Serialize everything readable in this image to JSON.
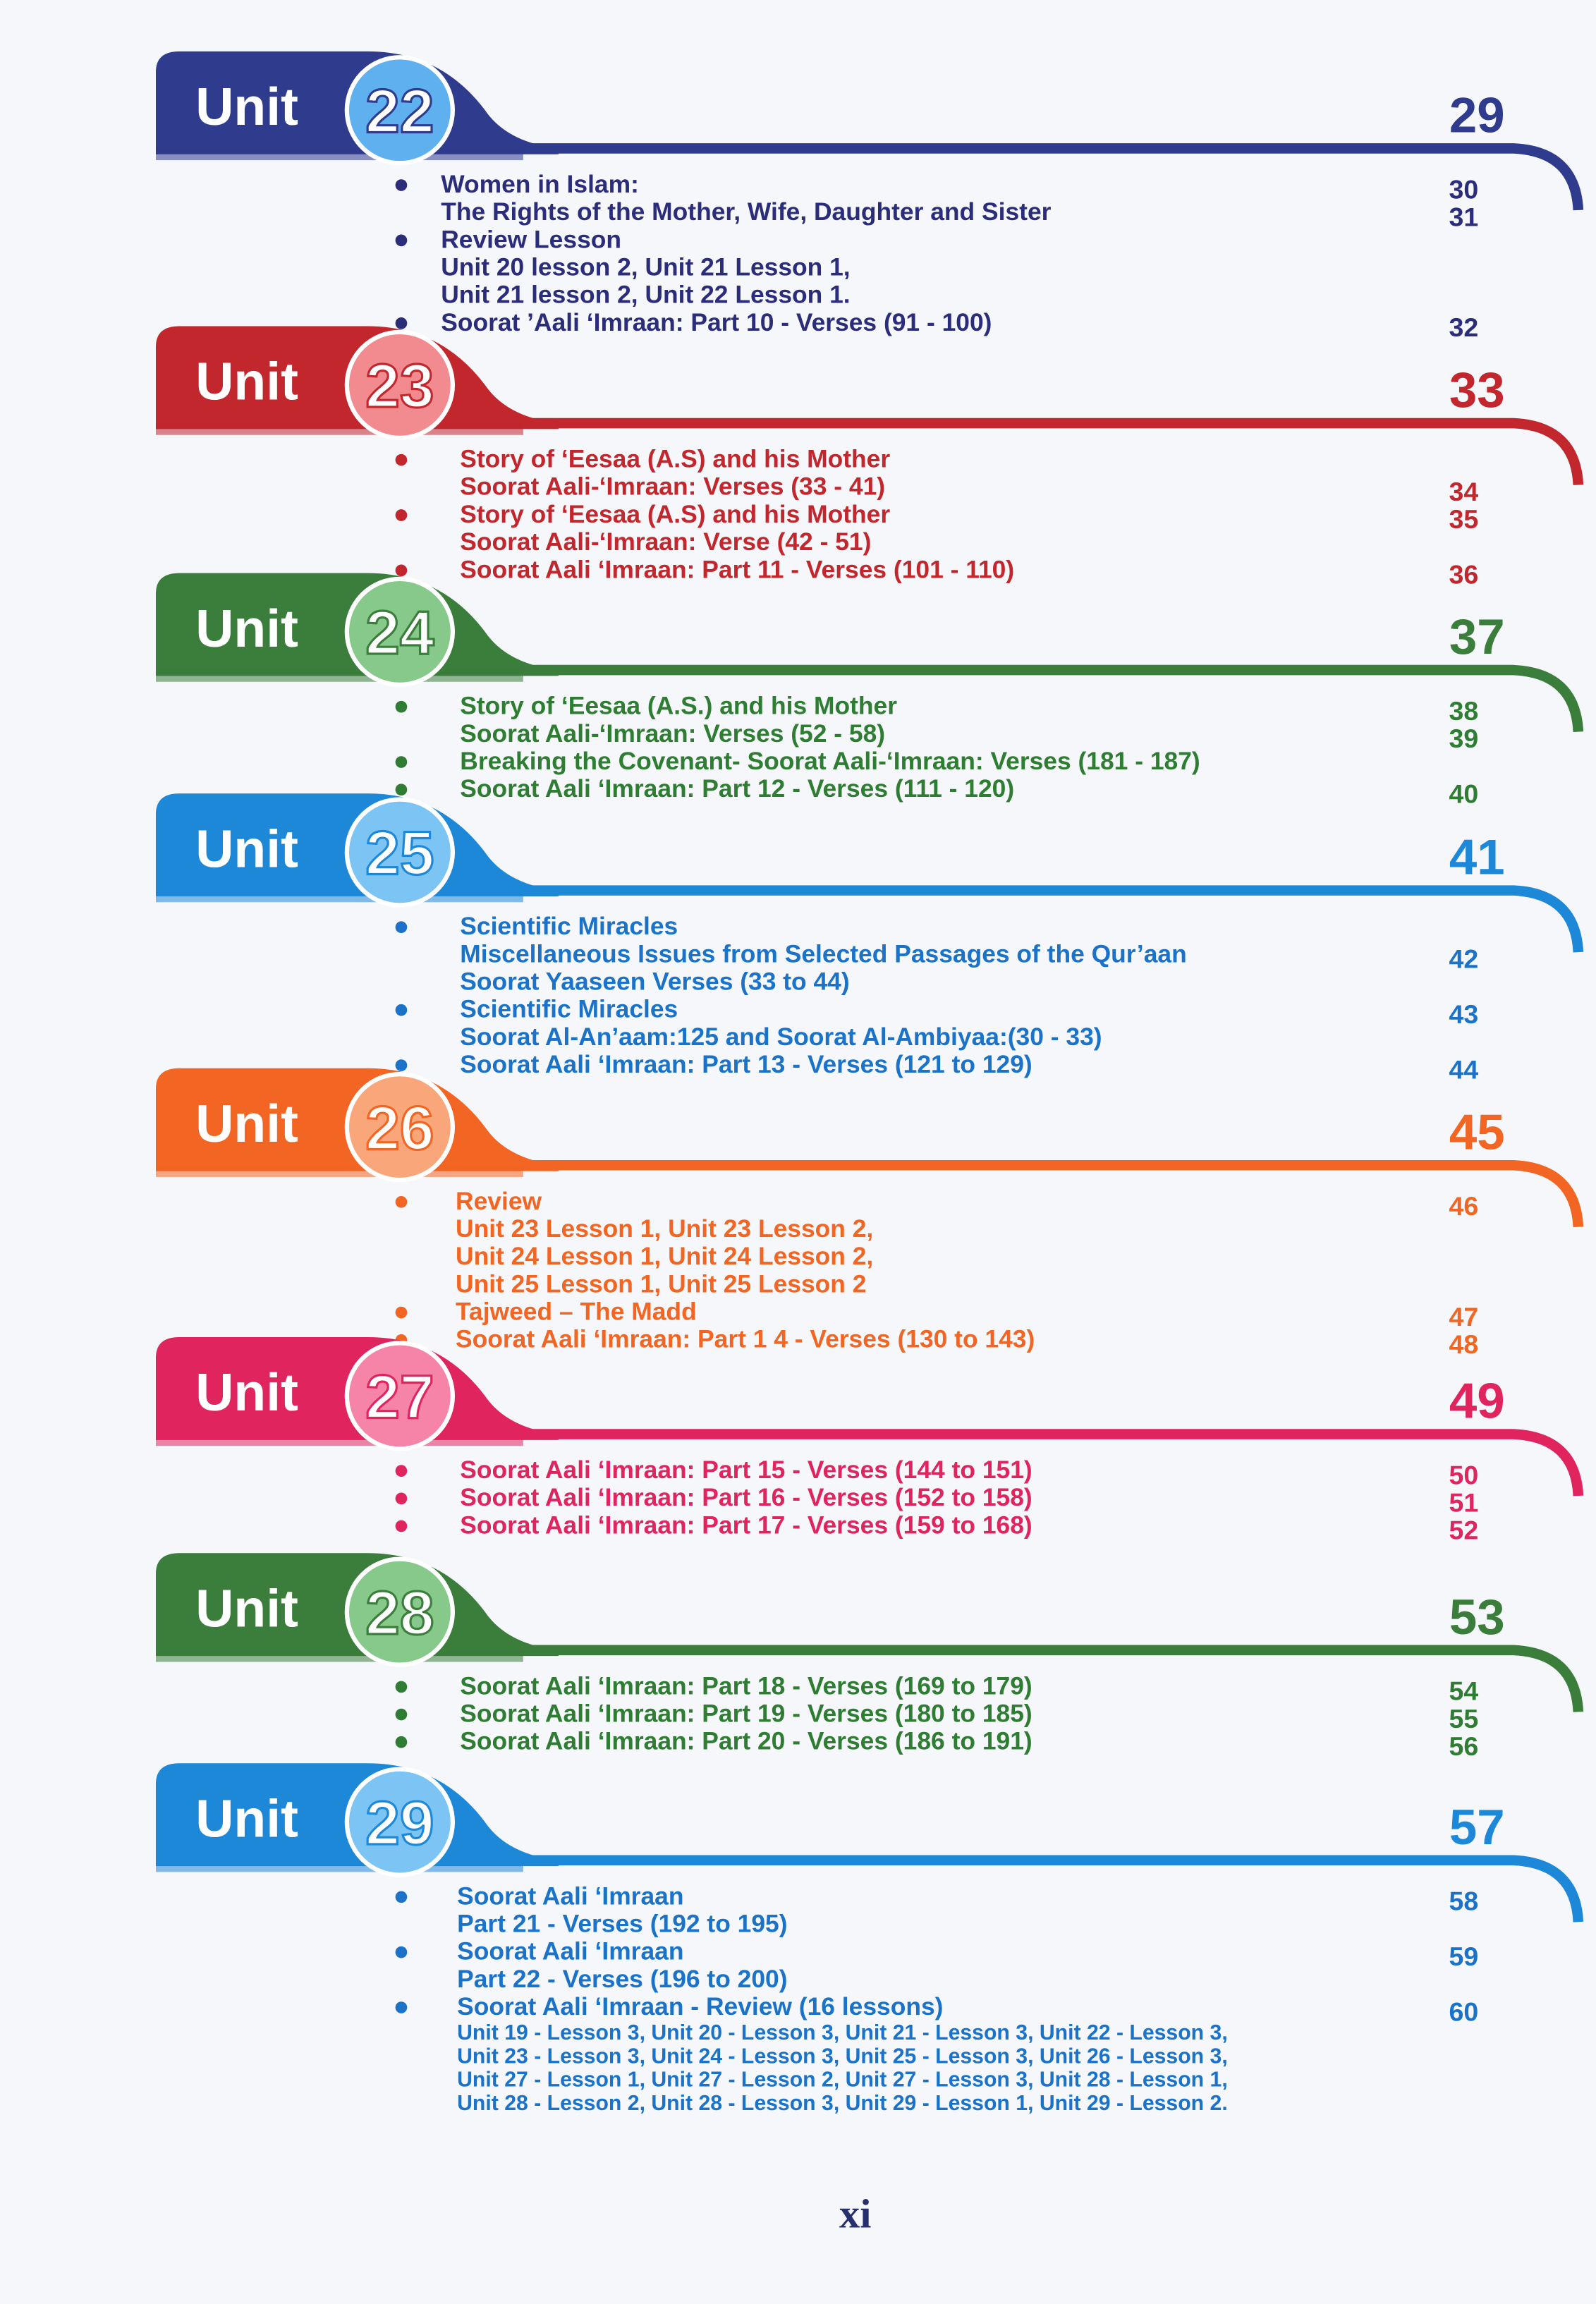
{
  "units": [
    {
      "label": "Unit",
      "number": "22",
      "page": "29",
      "rows": [
        {
          "text": "Women in Islam:",
          "bullet": true,
          "page": "30"
        },
        {
          "text": "The Rights of the Mother, Wife, Daughter and Sister",
          "page": "31"
        },
        {
          "text": "Review Lesson",
          "bullet": true
        },
        {
          "text": "Unit 20 lesson 2, Unit 21 Lesson 1,"
        },
        {
          "text": "Unit 21 lesson 2, Unit 22 Lesson 1."
        },
        {
          "text": "Soorat ’Aali ‘Imraan: Part 10 - Verses (91 - 100)",
          "bullet": true,
          "page": "32"
        }
      ]
    },
    {
      "label": "Unit",
      "number": "23",
      "page": "33",
      "rows": [
        {
          "text": "Story of ‘Eesaa (A.S) and his Mother",
          "bullet": true
        },
        {
          "text": "Soorat Aali-‘Imraan: Verses (33 - 41)",
          "page": "34"
        },
        {
          "text": "Story of ‘Eesaa (A.S) and his Mother",
          "bullet": true,
          "page": "35"
        },
        {
          "text": "Soorat  Aali-‘Imraan: Verse (42 - 51)"
        },
        {
          "text": "Soorat Aali ‘Imraan: Part 11 - Verses (101 - 110)",
          "bullet": true,
          "page": "36"
        }
      ]
    },
    {
      "label": "Unit",
      "number": "24",
      "page": "37",
      "rows": [
        {
          "text": "Story of ‘Eesaa (A.S.) and his Mother",
          "bullet": true,
          "page": "38"
        },
        {
          "text": "Soorat Aali-‘Imraan: Verses (52 - 58)",
          "page": "39"
        },
        {
          "text": "Breaking the Covenant- Soorat Aali-‘Imraan:  Verses (181 - 187)",
          "bullet": true
        },
        {
          "text": "Soorat  Aali ‘Imraan: Part 12 - Verses (111 - 120)",
          "bullet": true,
          "page": "40"
        }
      ]
    },
    {
      "label": "Unit",
      "number": "25",
      "page": "41",
      "rows": [
        {
          "text": "Scientific Miracles",
          "bullet": true
        },
        {
          "text": "Miscellaneous Issues from Selected Passages of the Qur’aan",
          "page": "42"
        },
        {
          "text": "Soorat Yaaseen Verses (33 to 44)"
        },
        {
          "text": "Scientific Miracles",
          "bullet": true,
          "page": "43"
        },
        {
          "text": "Soorat Al-An’aam:125 and  Soorat Al-Ambiyaa:(30 - 33)"
        },
        {
          "text": "Soorat Aali ‘Imraan: Part 13 - Verses (121 to 129)",
          "bullet": true,
          "page": "44"
        }
      ]
    },
    {
      "label": "Unit",
      "number": "26",
      "page": "45",
      "rows": [
        {
          "text": "Review",
          "bullet": true,
          "page": "46"
        },
        {
          "text": "Unit 23 Lesson 1, Unit 23 Lesson 2,"
        },
        {
          "text": "Unit 24 Lesson 1, Unit 24 Lesson 2,"
        },
        {
          "text": "Unit 25 Lesson 1, Unit 25 Lesson 2"
        },
        {
          "text": "Tajweed – The Madd",
          "bullet": true,
          "page": "47"
        },
        {
          "text": "Soorat Aali ‘Imraan: Part 1 4 - Verses (130 to 143)",
          "bullet": true,
          "page": "48"
        }
      ]
    },
    {
      "label": "Unit",
      "number": "27",
      "page": "49",
      "rows": [
        {
          "text": "Soorat Aali ‘Imraan: Part 15 - Verses (144 to 151)",
          "bullet": true,
          "page": "50"
        },
        {
          "text": "Soorat Aali ‘Imraan: Part 16 - Verses (152 to 158)",
          "bullet": true,
          "page": "51"
        },
        {
          "text": "Soorat Aali ‘Imraan: Part 17 - Verses (159 to 168)",
          "bullet": true,
          "page": "52"
        }
      ]
    },
    {
      "label": "Unit",
      "number": "28",
      "page": "53",
      "rows": [
        {
          "text": "Soorat Aali ‘Imraan: Part 18 - Verses (169 to 179)",
          "bullet": true,
          "page": "54"
        },
        {
          "text": "Soorat Aali ‘Imraan: Part 19 - Verses (180 to 185)",
          "bullet": true,
          "page": "55"
        },
        {
          "text": "Soorat Aali ‘Imraan: Part 20 - Verses (186 to 191)",
          "bullet": true,
          "page": "56"
        }
      ]
    },
    {
      "label": "Unit",
      "number": "29",
      "page": "57",
      "rows": [
        {
          "text": "Soorat Aali ‘Imraan",
          "bullet": true,
          "page": "58"
        },
        {
          "text": "Part 21 - Verses (192 to 195)"
        },
        {
          "text": "Soorat Aali ‘Imraan",
          "bullet": true,
          "page": "59"
        },
        {
          "text": "Part 22 - Verses (196 to 200)"
        },
        {
          "text": "Soorat Aali ‘Imraan - Review (16 lessons)",
          "bullet": true,
          "page": "60"
        }
      ],
      "notes": [
        "Unit 19 - Lesson 3, Unit 20 - Lesson 3, Unit 21 - Lesson 3,  Unit 22 - Lesson 3,",
        "Unit 23 - Lesson 3,  Unit 24 - Lesson 3, Unit 25 - Lesson 3, Unit 26 - Lesson 3,",
        "Unit 27 - Lesson 1, Unit 27 - Lesson 2, Unit 27 - Lesson 3, Unit 28 - Lesson 1,",
        "Unit 28 - Lesson 2,  Unit 28 - Lesson 3,  Unit 29 - Lesson 1, Unit 29 - Lesson 2."
      ]
    }
  ],
  "footer": {
    "page_number": "xi"
  }
}
